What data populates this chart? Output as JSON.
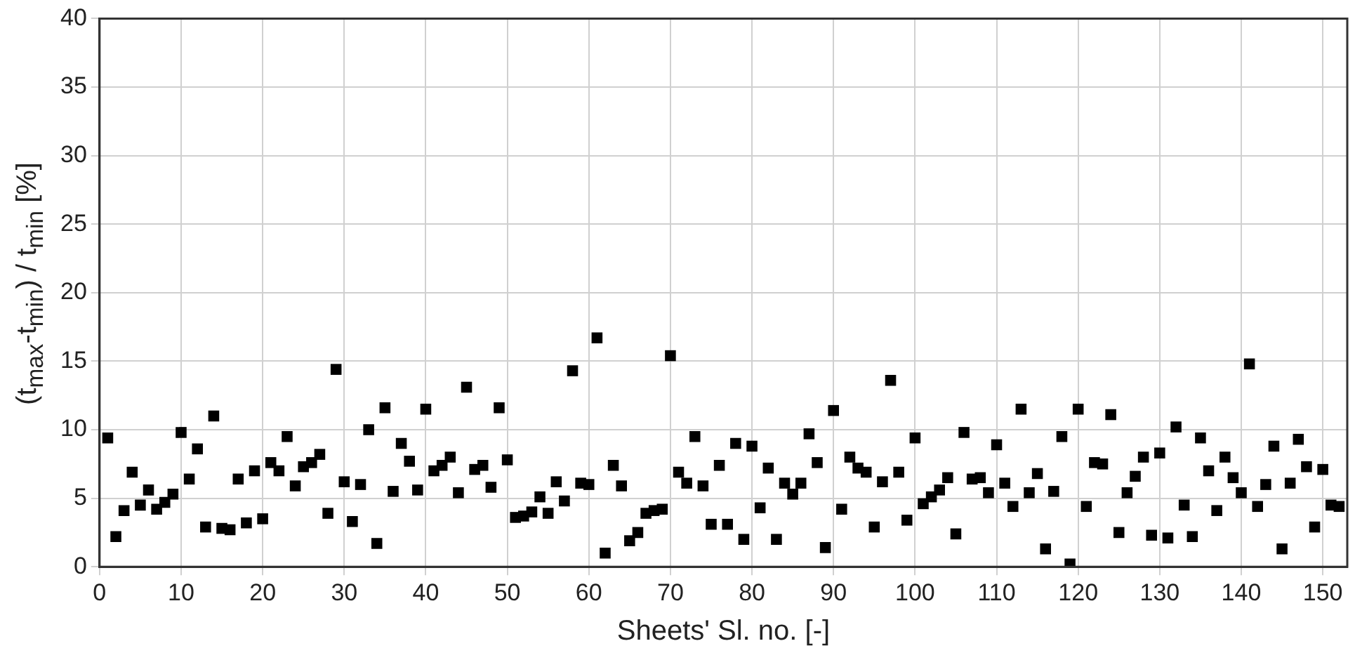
{
  "chart_data": {
    "type": "scatter",
    "xlabel": "Sheets' Sl. no. [-]",
    "ylabel": "(t$_{max}$-t$_{min}$) / t$_{min}$ [%]",
    "xlim": [
      0,
      153
    ],
    "xticks": [
      0,
      10,
      20,
      30,
      40,
      50,
      60,
      70,
      80,
      90,
      100,
      110,
      120,
      130,
      140,
      150
    ],
    "ylim": [
      0,
      40
    ],
    "yticks": [
      0,
      5,
      10,
      15,
      20,
      25,
      30,
      35,
      40
    ],
    "grid": true,
    "marker": "square",
    "legend": false,
    "series": [
      {
        "color": "#000000",
        "x": [
          1,
          2,
          3,
          4,
          5,
          6,
          7,
          8,
          9,
          10,
          11,
          12,
          13,
          14,
          15,
          16,
          17,
          18,
          19,
          20,
          21,
          22,
          23,
          24,
          25,
          26,
          27,
          28,
          29,
          30,
          31,
          32,
          33,
          34,
          35,
          36,
          37,
          38,
          39,
          40,
          41,
          42,
          43,
          44,
          45,
          46,
          47,
          48,
          49,
          50,
          51,
          52,
          53,
          54,
          55,
          56,
          57,
          58,
          59,
          60,
          61,
          62,
          63,
          64,
          65,
          66,
          67,
          68,
          69,
          70,
          71,
          72,
          73,
          74,
          75,
          76,
          77,
          78,
          79,
          80,
          81,
          82,
          83,
          84,
          85,
          86,
          87,
          88,
          89,
          90,
          91,
          92,
          93,
          94,
          95,
          96,
          97,
          98,
          99,
          100,
          101,
          102,
          103,
          104,
          105,
          106,
          107,
          108,
          109,
          110,
          111,
          112,
          113,
          114,
          115,
          116,
          117,
          118,
          119,
          120,
          121,
          122,
          123,
          124,
          125,
          126,
          127,
          128,
          129,
          130,
          131,
          132,
          133,
          134,
          135,
          136,
          137,
          138,
          139,
          140,
          141,
          142,
          143,
          144,
          145,
          146,
          147,
          148,
          149,
          150,
          151,
          152
        ],
        "values": [
          9.4,
          2.2,
          4.1,
          6.9,
          4.5,
          5.6,
          4.2,
          4.7,
          5.3,
          9.8,
          6.4,
          8.6,
          2.9,
          11.0,
          2.8,
          2.7,
          6.4,
          3.2,
          7.0,
          3.5,
          7.6,
          7.0,
          9.5,
          5.9,
          7.3,
          7.6,
          8.2,
          3.9,
          14.4,
          6.2,
          3.3,
          6.0,
          10.0,
          1.7,
          11.6,
          5.5,
          9.0,
          7.7,
          5.6,
          11.5,
          7.0,
          7.4,
          8.0,
          5.4,
          13.1,
          7.1,
          7.4,
          5.8,
          11.6,
          7.8,
          3.6,
          3.7,
          4.0,
          5.1,
          3.9,
          6.2,
          4.8,
          14.3,
          6.1,
          6.0,
          16.7,
          1.0,
          7.4,
          5.9,
          1.9,
          2.5,
          3.9,
          4.1,
          4.2,
          15.4,
          6.9,
          6.1,
          9.5,
          5.9,
          3.1,
          7.4,
          3.1,
          9.0,
          2.0,
          8.8,
          4.3,
          7.2,
          2.0,
          6.1,
          5.3,
          6.1,
          9.7,
          7.6,
          1.4,
          11.4,
          4.2,
          8.0,
          7.2,
          6.9,
          2.9,
          6.2,
          13.6,
          6.9,
          3.4,
          9.4,
          4.6,
          5.1,
          5.6,
          6.5,
          2.4,
          9.8,
          6.4,
          6.5,
          5.4,
          8.9,
          6.1,
          4.4,
          11.5,
          5.4,
          6.8,
          1.3,
          5.5,
          9.5,
          0.2,
          11.5,
          4.4,
          7.6,
          7.5,
          11.1,
          2.5,
          5.4,
          6.6,
          8.0,
          2.3,
          8.3,
          2.1,
          10.2,
          4.5,
          2.2,
          9.4,
          7.0,
          4.1,
          8.0,
          6.5,
          5.4,
          14.8,
          4.4,
          6.0,
          8.8,
          1.3,
          6.1,
          9.3,
          7.3,
          2.9,
          7.1,
          4.5,
          4.4
        ]
      }
    ]
  }
}
